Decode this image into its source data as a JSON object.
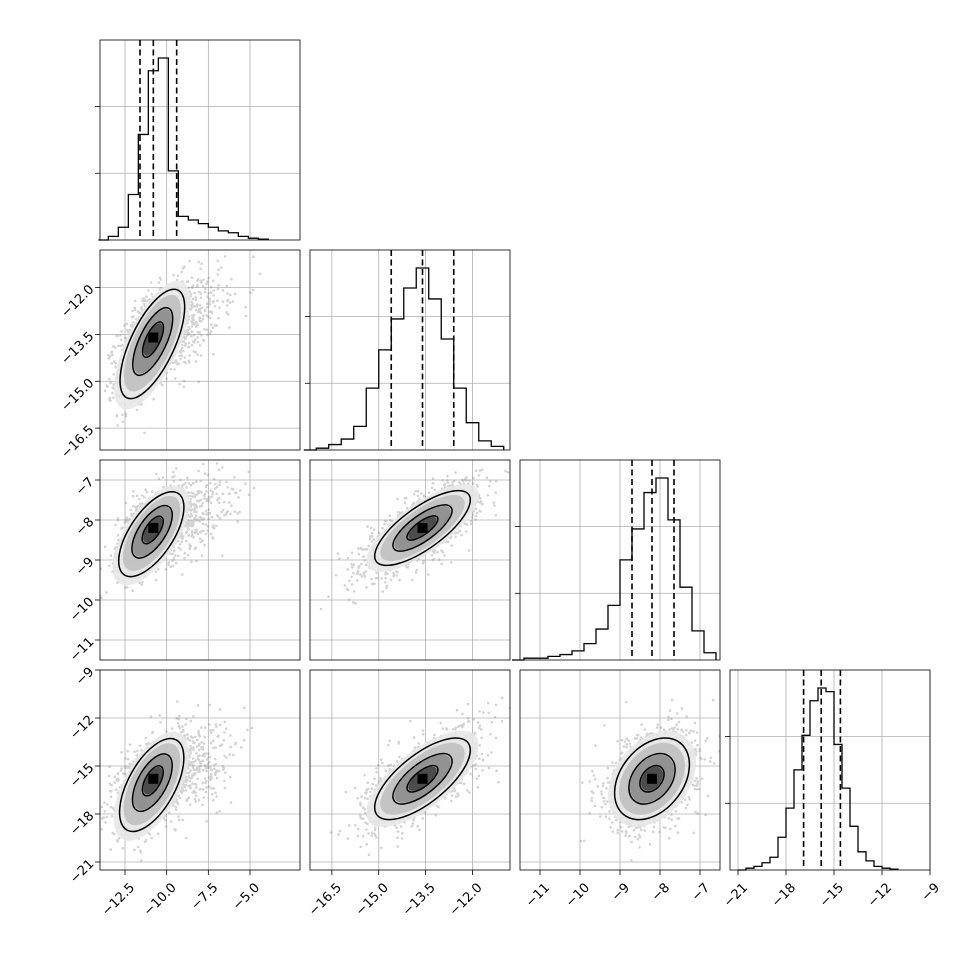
{
  "chart_data": {
    "type": "corner",
    "parameters": [
      {
        "ticks": [
          -12.5,
          -10.0,
          -7.5,
          -5.0
        ],
        "tick_labels": [
          "−12.5",
          "−10.0",
          "−7.5",
          "−5.0"
        ],
        "range": [
          -14.0,
          -2.0
        ]
      },
      {
        "ticks": [
          -16.5,
          -15.0,
          -13.5,
          -12.0
        ],
        "tick_labels": [
          "−16.5",
          "−15.0",
          "−13.5",
          "−12.0"
        ],
        "range": [
          -17.2,
          -10.8
        ]
      },
      {
        "ticks": [
          -11,
          -10,
          -9,
          -8,
          -7
        ],
        "tick_labels": [
          "−11",
          "−10",
          "−9",
          "−8",
          "−7"
        ],
        "range": [
          -11.5,
          -6.5
        ]
      },
      {
        "ticks": [
          -21,
          -18,
          -15,
          -12,
          -9
        ],
        "tick_labels": [
          "−21",
          "−18",
          "−15",
          "−12",
          "−9"
        ],
        "range": [
          -21.5,
          -9.0
        ]
      }
    ],
    "diagonal": [
      {
        "centers": [
          -13.2,
          -12.6,
          -12.0,
          -11.4,
          -10.8,
          -10.2,
          -9.6,
          -9.0,
          -8.4,
          -7.8,
          -7.2,
          -6.6,
          -6.0,
          -5.4,
          -4.8,
          -4.2
        ],
        "counts": [
          0.02,
          0.07,
          0.25,
          0.58,
          0.93,
          1.0,
          0.38,
          0.13,
          0.11,
          0.09,
          0.07,
          0.05,
          0.04,
          0.02,
          0.01,
          0.005
        ],
        "quantiles": [
          -11.6,
          -10.8,
          -9.4
        ]
      },
      {
        "centers": [
          -16.8,
          -16.4,
          -16.0,
          -15.6,
          -15.2,
          -14.8,
          -14.4,
          -14.0,
          -13.6,
          -13.2,
          -12.8,
          -12.4,
          -12.0,
          -11.6,
          -11.2
        ],
        "counts": [
          0.01,
          0.03,
          0.06,
          0.13,
          0.34,
          0.55,
          0.72,
          0.89,
          1.0,
          0.83,
          0.61,
          0.34,
          0.15,
          0.05,
          0.02
        ],
        "quantiles": [
          -14.6,
          -13.6,
          -12.6
        ]
      },
      {
        "centers": [
          -11.25,
          -10.95,
          -10.65,
          -10.35,
          -10.05,
          -9.75,
          -9.45,
          -9.15,
          -8.85,
          -8.55,
          -8.25,
          -7.95,
          -7.65,
          -7.35,
          -7.05,
          -6.75
        ],
        "counts": [
          0.01,
          0.01,
          0.02,
          0.03,
          0.05,
          0.09,
          0.17,
          0.3,
          0.55,
          0.72,
          0.92,
          1.0,
          0.77,
          0.4,
          0.16,
          0.04
        ],
        "quantiles": [
          -8.7,
          -8.2,
          -7.65
        ]
      },
      {
        "centers": [
          -20.25,
          -19.75,
          -19.25,
          -18.75,
          -18.25,
          -17.75,
          -17.25,
          -16.75,
          -16.25,
          -15.75,
          -15.25,
          -14.75,
          -14.25,
          -13.75,
          -13.25,
          -12.75,
          -12.25,
          -11.75,
          -11.25
        ],
        "counts": [
          0.01,
          0.02,
          0.04,
          0.07,
          0.18,
          0.34,
          0.55,
          0.74,
          0.93,
          1.0,
          0.98,
          0.69,
          0.45,
          0.24,
          0.1,
          0.05,
          0.02,
          0.01,
          0.005
        ],
        "quantiles": [
          -16.9,
          -15.8,
          -14.6
        ]
      }
    ],
    "pairs": [
      {
        "row": 1,
        "col": 0,
        "mean": [
          -10.8,
          -13.6
        ],
        "sd": [
          1.05,
          0.9
        ],
        "rho": 0.6
      },
      {
        "row": 2,
        "col": 0,
        "mean": [
          -10.8,
          -8.2
        ],
        "sd": [
          1.05,
          0.55
        ],
        "rho": 0.55
      },
      {
        "row": 2,
        "col": 1,
        "mean": [
          -13.6,
          -8.2
        ],
        "sd": [
          0.9,
          0.55
        ],
        "rho": 0.75
      },
      {
        "row": 3,
        "col": 0,
        "mean": [
          -10.8,
          -15.8
        ],
        "sd": [
          1.05,
          1.5
        ],
        "rho": 0.5
      },
      {
        "row": 3,
        "col": 1,
        "mean": [
          -13.6,
          -15.8
        ],
        "sd": [
          0.9,
          1.5
        ],
        "rho": 0.7
      },
      {
        "row": 3,
        "col": 2,
        "mean": [
          -8.2,
          -15.8
        ],
        "sd": [
          0.55,
          1.5
        ],
        "rho": 0.35
      }
    ],
    "contour_levels_sigma": [
      0.5,
      1.0,
      1.5,
      2.0
    ],
    "grid": true,
    "colors": {
      "hist": "#000000",
      "contour": "#000000",
      "scatter": "#808080",
      "grid": "#b0b0b0"
    }
  }
}
